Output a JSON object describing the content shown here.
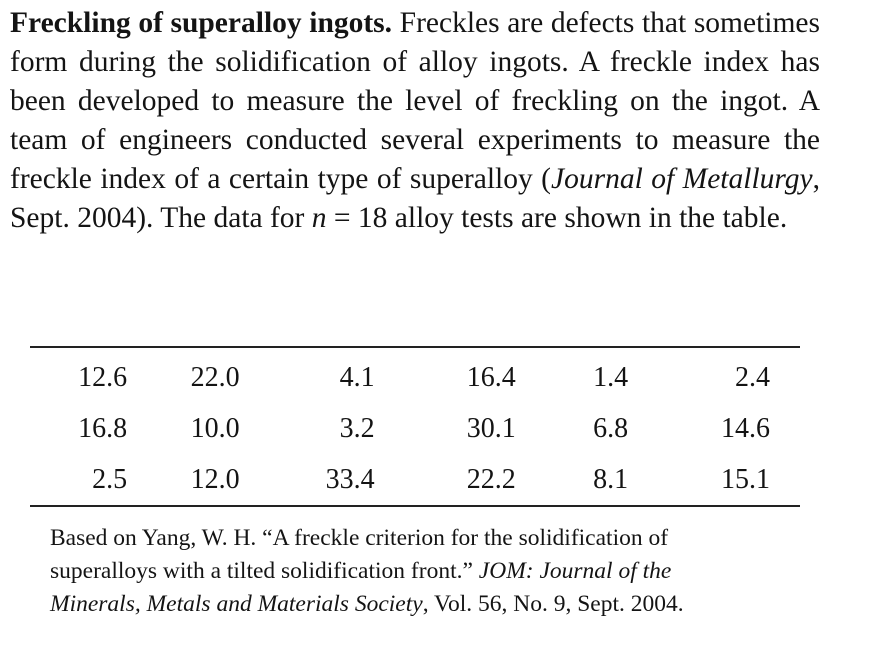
{
  "problem": {
    "title": "Freckling of superalloy ingots.",
    "text_1": " Freckles are defects that sometimes form during the solidification of alloy ingots. A freckle index has been developed to measure the level of freckling on the ingot. A team of engineers conducted several experiments to measure the freckle index of a certain type of superalloy (",
    "journal": "Journal of Metallurgy",
    "text_2": ", Sept. 2004). The data for ",
    "n_var": "n",
    "text_3": " = 18 alloy tests are shown in the table."
  },
  "table": {
    "rows": [
      [
        "12.6",
        "22.0",
        "4.1",
        "16.4",
        "1.4",
        "2.4"
      ],
      [
        "16.8",
        "10.0",
        "3.2",
        "30.1",
        "6.8",
        "14.6"
      ],
      [
        "2.5",
        "12.0",
        "33.4",
        "22.2",
        "8.1",
        "15.1"
      ]
    ]
  },
  "source": {
    "text_1": "Based on Yang, W. H. “A freckle criterion for the solidification of superalloys with a tilted solidification front.” ",
    "journal": "JOM: Journal of the Minerals, Metals and Materials Society",
    "text_2": ", Vol. 56, No. 9, Sept. 2004."
  }
}
